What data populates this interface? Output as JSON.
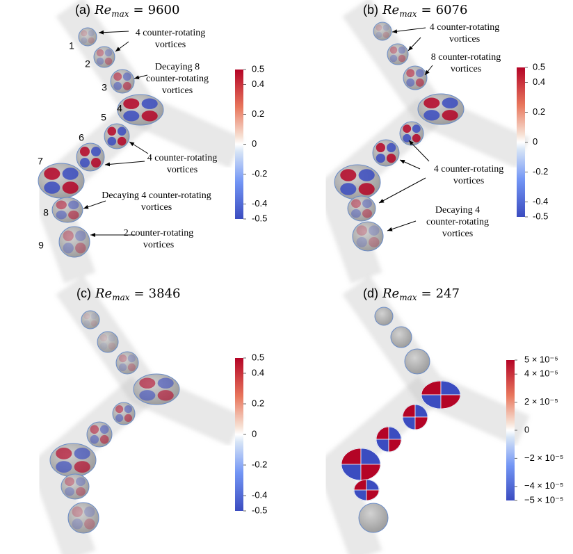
{
  "panels": [
    {
      "title": {
        "label": "(a)",
        "symbol": "Re",
        "subscript": "max",
        "relation": "=",
        "value": "9600"
      },
      "section_labels": [
        "1",
        "2",
        "3",
        "4",
        "5",
        "6",
        "7",
        "8",
        "9"
      ],
      "annotations": [
        {
          "lines": [
            "4 counter-rotating",
            "vortices"
          ]
        },
        {
          "lines": [
            "Decaying 8",
            "counter-rotating",
            "vortices"
          ]
        },
        {
          "lines": [
            "4 counter-rotating",
            "vortices"
          ]
        },
        {
          "lines": [
            "Decaying 4 counter-rotating",
            "vortices"
          ]
        },
        {
          "lines": [
            "2 counter-rotating",
            "vortices"
          ]
        }
      ],
      "colorbar": {
        "lim": [
          -0.5,
          0.5
        ],
        "ticks": [
          0.5,
          0.4,
          0.2,
          0,
          -0.2,
          -0.4,
          -0.5
        ]
      }
    },
    {
      "title": {
        "label": "(b)",
        "symbol": "Re",
        "subscript": "max",
        "relation": "=",
        "value": "6076"
      },
      "annotations": [
        {
          "lines": [
            "4 counter-rotating",
            "vortices"
          ]
        },
        {
          "lines": [
            "8 counter-rotating",
            "vortices"
          ]
        },
        {
          "lines": [
            "4 counter-rotating",
            "vortices"
          ]
        },
        {
          "lines": [
            "Decaying 4",
            "counter-rotating",
            "vortices"
          ]
        }
      ],
      "colorbar": {
        "lim": [
          -0.5,
          0.5
        ],
        "ticks": [
          0.5,
          0.4,
          0.2,
          0,
          -0.2,
          -0.4,
          -0.5
        ]
      }
    },
    {
      "title": {
        "label": "(c)",
        "symbol": "Re",
        "subscript": "max",
        "relation": "=",
        "value": "3846"
      },
      "colorbar": {
        "lim": [
          -0.5,
          0.5
        ],
        "ticks": [
          0.5,
          0.4,
          0.2,
          0,
          -0.2,
          -0.4,
          -0.5
        ]
      }
    },
    {
      "title": {
        "label": "(d)",
        "symbol": "Re",
        "subscript": "max",
        "relation": "=",
        "value": "247"
      },
      "colorbar": {
        "lim": [
          -5e-05,
          5e-05
        ],
        "ticks": [
          {
            "value": 5e-05,
            "label": "5 × 10⁻⁵"
          },
          {
            "value": 4e-05,
            "label": "4 × 10⁻⁵"
          },
          {
            "value": 2e-05,
            "label": "2 × 10⁻⁵"
          },
          0,
          {
            "value": -2e-05,
            "label": "−2 × 10⁻⁵"
          },
          {
            "value": -4e-05,
            "label": "−4 × 10⁻⁵"
          },
          {
            "value": -5e-05,
            "label": "−5 × 10⁻⁵"
          }
        ]
      }
    }
  ]
}
